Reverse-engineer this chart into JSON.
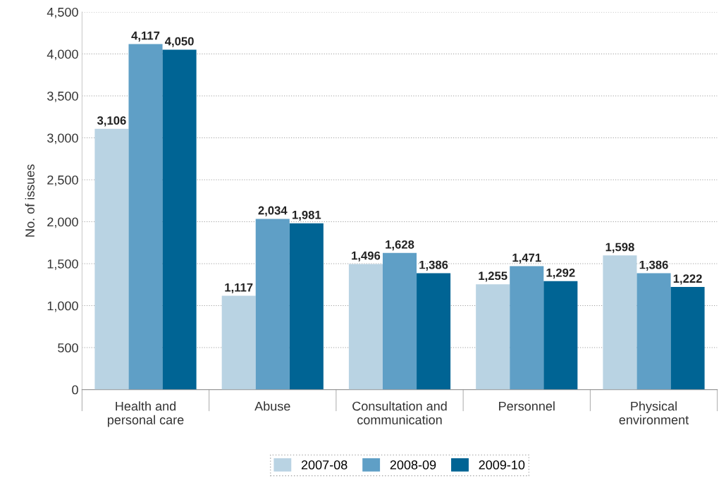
{
  "chart_data": {
    "type": "bar",
    "ylabel": "No. of issues",
    "categories": [
      "Health and\npersonal care",
      "Abuse",
      "Consultation and\ncommunication",
      "Personnel",
      "Physical\nenvironment"
    ],
    "series": [
      {
        "name": "2007-08",
        "color": "#b9d3e3",
        "values": [
          3106,
          1117,
          1496,
          1255,
          1598
        ]
      },
      {
        "name": "2008-09",
        "color": "#5f9fc6",
        "values": [
          4117,
          2034,
          1628,
          1471,
          1386
        ]
      },
      {
        "name": "2009-10",
        "color": "#006494",
        "values": [
          4050,
          1981,
          1386,
          1292,
          1222
        ]
      }
    ],
    "ylim": [
      0,
      4500
    ],
    "yticks": [
      {
        "value": 0,
        "label": "0"
      },
      {
        "value": 500,
        "label": "500"
      },
      {
        "value": 1000,
        "label": "1,000"
      },
      {
        "value": 1500,
        "label": "1,500"
      },
      {
        "value": 2000,
        "label": "2,000"
      },
      {
        "value": 2500,
        "label": "2,500"
      },
      {
        "value": 3000,
        "label": "3,000"
      },
      {
        "value": 3500,
        "label": "3,500"
      },
      {
        "value": 4000,
        "label": "4,000"
      },
      {
        "value": 4500,
        "label": "4,500"
      }
    ],
    "value_labels": [
      [
        "3,106",
        "1,117",
        "1,496",
        "1,255",
        "1,598"
      ],
      [
        "4,117",
        "2,034",
        "1,628",
        "1,471",
        "1,386"
      ],
      [
        "4,050",
        "1,981",
        "1,386",
        "1,292",
        "1,222"
      ]
    ],
    "grid": "y",
    "legend": "bottom"
  }
}
